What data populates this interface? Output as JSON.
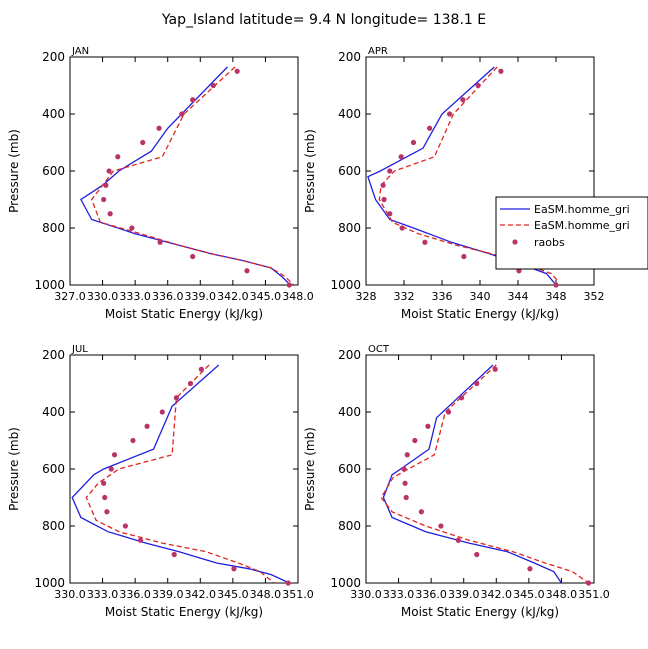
{
  "figure": {
    "title": "Yap_Island  latitude= 9.4 N longitude= 138.1 E",
    "xlabel": "Moist Static Energy (kJ/kg)",
    "ylabel": "Pressure (mb)",
    "legend": {
      "placement": "right of APR panel",
      "entries": [
        "EaSM.homme_gri",
        "EaSM.homme_gri",
        "raobs"
      ]
    },
    "colors": {
      "model1": "#1f1fe0",
      "model2": "#e0241f",
      "raobs": "#b8336a"
    }
  },
  "chart_data": [
    {
      "type": "line",
      "panel": "JAN",
      "title": "JAN",
      "xlabel": "Moist Static Energy (kJ/kg)",
      "ylabel": "Pressure (mb)",
      "xlim": [
        327,
        348
      ],
      "ylim": [
        1000,
        200
      ],
      "xticks": [
        327,
        330,
        333,
        336,
        339,
        342,
        345,
        348
      ],
      "xtick_labels": [
        "327.0",
        "330.0",
        "333.0",
        "336.0",
        "339.0",
        "342.0",
        "345.0",
        "348.0"
      ],
      "yticks": [
        200,
        400,
        600,
        800,
        1000
      ],
      "series": [
        {
          "name": "EaSM.homme_gri",
          "style": "solid",
          "x": [
            341.5,
            336,
            334.5,
            331.5,
            330,
            328,
            329,
            333,
            337,
            340,
            343,
            345.5,
            346.5,
            347.3
          ],
          "y": [
            235,
            450,
            530,
            600,
            650,
            700,
            770,
            820,
            860,
            890,
            915,
            940,
            970,
            1000
          ]
        },
        {
          "name": "EaSM.homme_gri",
          "style": "dashed",
          "x": [
            342.2,
            337.5,
            335.5,
            331,
            330,
            329,
            329.8,
            333.5,
            337,
            340,
            343,
            345.5,
            346.8,
            347.6
          ],
          "y": [
            235,
            400,
            550,
            600,
            650,
            700,
            780,
            820,
            860,
            890,
            915,
            940,
            970,
            1000
          ]
        },
        {
          "name": "raobs",
          "style": "points",
          "x": [
            342.4,
            340.2,
            338.3,
            337.3,
            335.2,
            333.7,
            331.4,
            330.6,
            330.3,
            330.1,
            330.7,
            332.7,
            335.3,
            338.3,
            343.3,
            347.2
          ],
          "y": [
            250,
            300,
            350,
            400,
            450,
            500,
            550,
            600,
            650,
            700,
            750,
            800,
            850,
            900,
            950,
            1000
          ]
        }
      ]
    },
    {
      "type": "line",
      "panel": "APR",
      "title": "APR",
      "xlabel": "Moist Static Energy (kJ/kg)",
      "ylabel": "Pressure (mb)",
      "xlim": [
        328,
        352
      ],
      "ylim": [
        1000,
        200
      ],
      "xticks": [
        328,
        332,
        336,
        340,
        344,
        348,
        352
      ],
      "xtick_labels": [
        "328",
        "332",
        "336",
        "340",
        "344",
        "348",
        "352"
      ],
      "yticks": [
        200,
        400,
        600,
        800,
        1000
      ],
      "series": [
        {
          "name": "EaSM.homme_gri",
          "style": "solid",
          "x": [
            341.5,
            336,
            334,
            329.5,
            328.2,
            329,
            330.5,
            333,
            337,
            341,
            344.5,
            347,
            348
          ],
          "y": [
            235,
            400,
            520,
            600,
            620,
            700,
            770,
            800,
            850,
            890,
            930,
            960,
            1000
          ]
        },
        {
          "name": "EaSM.homme_gri",
          "style": "dashed",
          "x": [
            341.8,
            337.2,
            335.2,
            331,
            329.6,
            329.4,
            330.8,
            333.5,
            337.5,
            341.2,
            345,
            347.5,
            348.3
          ],
          "y": [
            235,
            400,
            550,
            600,
            650,
            700,
            780,
            820,
            860,
            890,
            930,
            960,
            990
          ]
        },
        {
          "name": "raobs",
          "style": "points",
          "x": [
            342.2,
            339.8,
            338.2,
            336.8,
            334.7,
            333,
            331.7,
            330.5,
            329.8,
            329.9,
            330.5,
            331.8,
            334.2,
            338.3,
            344.1,
            348
          ],
          "y": [
            250,
            300,
            350,
            400,
            450,
            500,
            550,
            600,
            650,
            700,
            750,
            800,
            850,
            900,
            950,
            1000
          ]
        }
      ]
    },
    {
      "type": "line",
      "panel": "JUL",
      "title": "JUL",
      "xlabel": "Moist Static Energy (kJ/kg)",
      "ylabel": "Pressure (mb)",
      "xlim": [
        330,
        351
      ],
      "ylim": [
        1000,
        200
      ],
      "xticks": [
        330,
        333,
        336,
        339,
        342,
        345,
        348,
        351
      ],
      "xtick_labels": [
        "330.0",
        "333.0",
        "336.0",
        "339.0",
        "342.0",
        "345.0",
        "348.0",
        "351.0"
      ],
      "yticks": [
        200,
        400,
        600,
        800,
        1000
      ],
      "series": [
        {
          "name": "EaSM.homme_gri",
          "style": "solid",
          "x": [
            343.7,
            339.4,
            337.7,
            333.1,
            332.2,
            330.2,
            331,
            333.5,
            337,
            340,
            343.5,
            346.5,
            348.5,
            350.2
          ],
          "y": [
            235,
            380,
            530,
            600,
            620,
            700,
            770,
            820,
            860,
            890,
            930,
            950,
            970,
            1000
          ]
        },
        {
          "name": "EaSM.homme_gri",
          "style": "dashed",
          "x": [
            342.8,
            339.8,
            339.4,
            334.5,
            332.6,
            331.5,
            332.4,
            334.5,
            338.5,
            342.5,
            345.5,
            347.5,
            348.8
          ],
          "y": [
            235,
            350,
            550,
            600,
            650,
            700,
            780,
            820,
            860,
            890,
            930,
            960,
            1000
          ]
        },
        {
          "name": "raobs",
          "style": "points",
          "x": [
            342.1,
            341.1,
            339.8,
            338.5,
            337.1,
            335.8,
            334.1,
            333.8,
            333.1,
            333.2,
            333.4,
            335.1,
            336.5,
            339.6,
            345.1,
            350.1
          ],
          "y": [
            250,
            300,
            350,
            400,
            450,
            500,
            550,
            600,
            650,
            700,
            750,
            800,
            850,
            900,
            950,
            1000
          ]
        }
      ]
    },
    {
      "type": "line",
      "panel": "OCT",
      "title": "OCT",
      "xlabel": "Moist Static Energy (kJ/kg)",
      "ylabel": "Pressure (mb)",
      "xlim": [
        330,
        351
      ],
      "ylim": [
        1000,
        200
      ],
      "xticks": [
        330,
        333,
        336,
        339,
        342,
        345,
        348,
        351
      ],
      "xtick_labels": [
        "330.0",
        "333.0",
        "336.0",
        "339.0",
        "342.0",
        "345.0",
        "348.0",
        "351.0"
      ],
      "yticks": [
        200,
        400,
        600,
        800,
        1000
      ],
      "series": [
        {
          "name": "EaSM.homme_gri",
          "style": "solid",
          "x": [
            341.7,
            336.5,
            335.8,
            333.2,
            332.4,
            331.6,
            332.4,
            335.5,
            339.5,
            343,
            345.5,
            347.3,
            348
          ],
          "y": [
            235,
            420,
            530,
            600,
            620,
            700,
            770,
            820,
            860,
            890,
            930,
            960,
            1000
          ]
        },
        {
          "name": "EaSM.homme_gri",
          "style": "dashed",
          "x": [
            342,
            337.3,
            336.3,
            333.9,
            332.5,
            331.4,
            332.4,
            335.5,
            339.5,
            343.5,
            346.5,
            349,
            350.5
          ],
          "y": [
            235,
            400,
            550,
            600,
            630,
            700,
            750,
            800,
            850,
            890,
            930,
            960,
            1000
          ]
        },
        {
          "name": "raobs",
          "style": "points",
          "x": [
            341.9,
            340.2,
            338.8,
            337.6,
            335.7,
            334.5,
            333.8,
            333.5,
            333.6,
            333.7,
            335.1,
            336.9,
            338.5,
            340.2,
            345.1,
            350.5
          ],
          "y": [
            250,
            300,
            350,
            400,
            450,
            500,
            550,
            600,
            650,
            700,
            750,
            800,
            850,
            900,
            950,
            1000
          ]
        }
      ]
    }
  ]
}
